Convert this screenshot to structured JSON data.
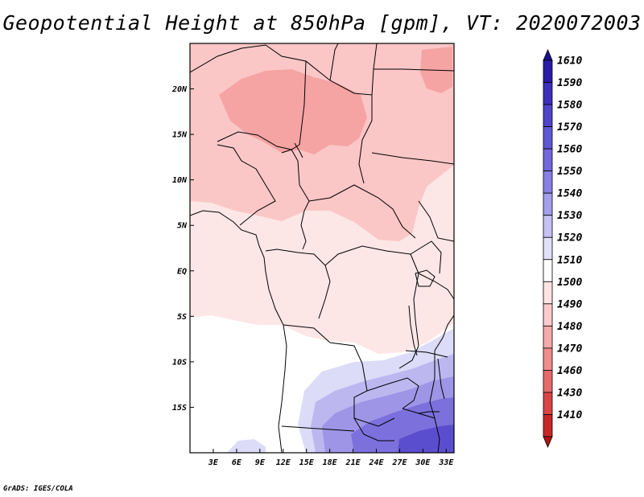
{
  "title": "Geopotential Height at 850hPa [gpm], VT: 2020072003",
  "credit": "GrADS: IGES/COLA",
  "map": {
    "lon_range": [
      0,
      34
    ],
    "lat_range": [
      -20,
      25
    ],
    "lon_ticks": [
      "3E",
      "6E",
      "9E",
      "12E",
      "15E",
      "18E",
      "21E",
      "24E",
      "27E",
      "30E",
      "33E"
    ],
    "lon_tick_values": [
      3,
      6,
      9,
      12,
      15,
      18,
      21,
      24,
      27,
      30,
      33
    ],
    "lat_ticks": [
      "20N",
      "15N",
      "10N",
      "5N",
      "EQ",
      "5S",
      "10S",
      "15S"
    ],
    "lat_tick_values": [
      20,
      15,
      10,
      5,
      0,
      -5,
      -10,
      -15
    ]
  },
  "colorbar": {
    "labels": [
      "1610",
      "1590",
      "1580",
      "1570",
      "1560",
      "1550",
      "1540",
      "1530",
      "1520",
      "1510",
      "1500",
      "1490",
      "1480",
      "1470",
      "1460",
      "1430",
      "1410"
    ],
    "colors": [
      "#1c108c",
      "#2a1ca6",
      "#3b30bb",
      "#4e45c9",
      "#5f58d4",
      "#7468dc",
      "#8a7fe4",
      "#a59ded",
      "#c6c0f4",
      "#e3e1fa",
      "#ffffff",
      "#fde3e3",
      "#fbcbcb",
      "#f6a9a9",
      "#ef8c8c",
      "#e56b6b",
      "#d94545",
      "#c92727",
      "#b21212"
    ]
  },
  "colors": {
    "c1490": "#f6a3a3",
    "c1500": "#fbc6c6",
    "c1510": "#fde6e6",
    "c1520": "#ffffff",
    "c1530": "#dcdbf8",
    "c1540": "#bdb7f0",
    "c1550": "#9e95e6",
    "c1560": "#7c70dc",
    "c1570": "#5b4ece"
  }
}
